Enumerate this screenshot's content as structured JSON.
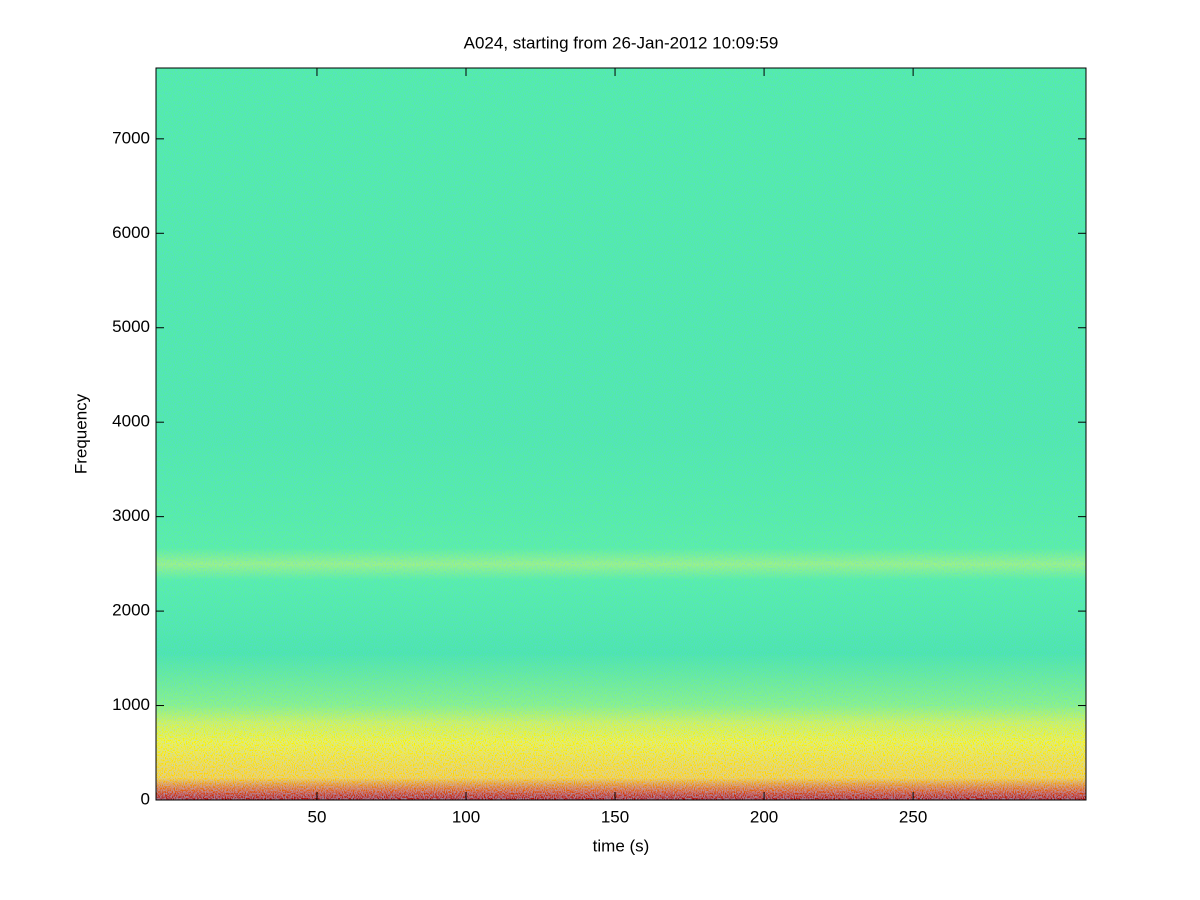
{
  "chart_data": {
    "type": "spectrogram",
    "title": "A024, starting from 26-Jan-2012 10:09:59",
    "xlabel": "time (s)",
    "ylabel": "Frequency",
    "xlim": [
      -4,
      308
    ],
    "xticks": [
      50,
      100,
      150,
      200,
      250
    ],
    "ylim": [
      0,
      7750
    ],
    "yticks": [
      0,
      1000,
      2000,
      3000,
      4000,
      5000,
      6000,
      7000
    ]
  }
}
